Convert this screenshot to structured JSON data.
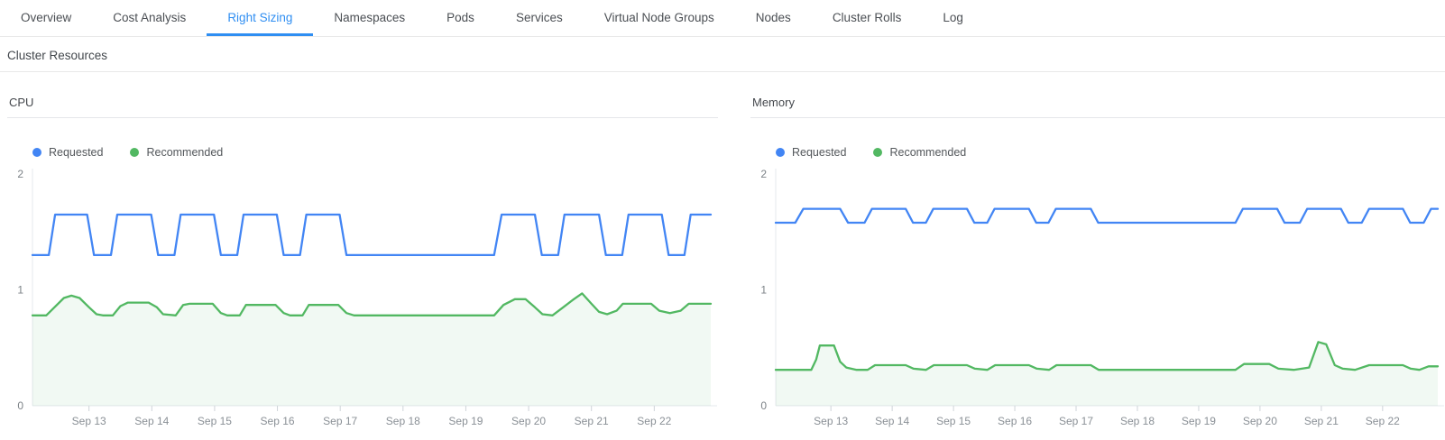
{
  "tab_bar": {
    "tabs": [
      {
        "label": "Overview",
        "active": false
      },
      {
        "label": "Cost Analysis",
        "active": false
      },
      {
        "label": "Right Sizing",
        "active": true
      },
      {
        "label": "Namespaces",
        "active": false
      },
      {
        "label": "Pods",
        "active": false
      },
      {
        "label": "Services",
        "active": false
      },
      {
        "label": "Virtual Node Groups",
        "active": false
      },
      {
        "label": "Nodes",
        "active": false
      },
      {
        "label": "Cluster Rolls",
        "active": false
      },
      {
        "label": "Log",
        "active": false
      }
    ]
  },
  "section": {
    "title": "Cluster Resources"
  },
  "colors": {
    "requested": "#4285f4",
    "recommended": "#52b862",
    "recommended_fill": "rgba(82,184,98,0.08)",
    "active_tab": "#2f8ef2",
    "axis_line": "#e5e9ed",
    "tick_mark": "#cfd4d9",
    "tick_label": "#8a9096",
    "y_label": "#7c8287"
  },
  "chart_data": [
    {
      "id": "cpu",
      "type": "line",
      "title": "CPU",
      "legend": [
        "Requested",
        "Recommended"
      ],
      "legend_position": "top-left",
      "grid": false,
      "x_axis": {
        "range": [
          12.1,
          22.9
        ],
        "ticks": [
          13,
          14,
          15,
          16,
          17,
          18,
          19,
          20,
          21,
          22
        ],
        "tick_labels": [
          "Sep 13",
          "Sep 14",
          "Sep 15",
          "Sep 16",
          "Sep 17",
          "Sep 18",
          "Sep 19",
          "Sep 20",
          "Sep 21",
          "Sep 22"
        ]
      },
      "y_axis": {
        "range": [
          0,
          2
        ],
        "ticks": [
          0,
          1,
          2
        ]
      },
      "series": [
        {
          "name": "Requested",
          "color_key": "requested",
          "points": [
            [
              12.1,
              1.3
            ],
            [
              12.36,
              1.3
            ],
            [
              12.46,
              1.65
            ],
            [
              12.97,
              1.65
            ],
            [
              13.08,
              1.3
            ],
            [
              13.35,
              1.3
            ],
            [
              13.45,
              1.65
            ],
            [
              13.99,
              1.65
            ],
            [
              14.1,
              1.3
            ],
            [
              14.36,
              1.3
            ],
            [
              14.46,
              1.65
            ],
            [
              14.99,
              1.65
            ],
            [
              15.1,
              1.3
            ],
            [
              15.36,
              1.3
            ],
            [
              15.46,
              1.65
            ],
            [
              15.99,
              1.65
            ],
            [
              16.1,
              1.3
            ],
            [
              16.36,
              1.3
            ],
            [
              16.46,
              1.65
            ],
            [
              16.99,
              1.65
            ],
            [
              17.1,
              1.3
            ],
            [
              19.45,
              1.3
            ],
            [
              19.57,
              1.65
            ],
            [
              20.1,
              1.65
            ],
            [
              20.21,
              1.3
            ],
            [
              20.47,
              1.3
            ],
            [
              20.57,
              1.65
            ],
            [
              21.12,
              1.65
            ],
            [
              21.23,
              1.3
            ],
            [
              21.49,
              1.3
            ],
            [
              21.59,
              1.65
            ],
            [
              22.12,
              1.65
            ],
            [
              22.23,
              1.3
            ],
            [
              22.48,
              1.3
            ],
            [
              22.58,
              1.65
            ],
            [
              22.9,
              1.65
            ]
          ]
        },
        {
          "name": "Recommended",
          "color_key": "recommended",
          "area": true,
          "points": [
            [
              12.1,
              0.78
            ],
            [
              12.32,
              0.78
            ],
            [
              12.45,
              0.85
            ],
            [
              12.6,
              0.93
            ],
            [
              12.72,
              0.95
            ],
            [
              12.85,
              0.93
            ],
            [
              13.0,
              0.85
            ],
            [
              13.12,
              0.79
            ],
            [
              13.22,
              0.78
            ],
            [
              13.38,
              0.78
            ],
            [
              13.5,
              0.86
            ],
            [
              13.62,
              0.89
            ],
            [
              13.95,
              0.89
            ],
            [
              14.08,
              0.85
            ],
            [
              14.18,
              0.79
            ],
            [
              14.38,
              0.78
            ],
            [
              14.5,
              0.87
            ],
            [
              14.6,
              0.88
            ],
            [
              14.97,
              0.88
            ],
            [
              15.1,
              0.8
            ],
            [
              15.2,
              0.78
            ],
            [
              15.4,
              0.78
            ],
            [
              15.5,
              0.87
            ],
            [
              15.97,
              0.87
            ],
            [
              16.1,
              0.8
            ],
            [
              16.2,
              0.78
            ],
            [
              16.4,
              0.78
            ],
            [
              16.5,
              0.87
            ],
            [
              16.97,
              0.87
            ],
            [
              17.1,
              0.8
            ],
            [
              17.22,
              0.78
            ],
            [
              19.45,
              0.78
            ],
            [
              19.6,
              0.87
            ],
            [
              19.78,
              0.92
            ],
            [
              19.95,
              0.92
            ],
            [
              20.1,
              0.85
            ],
            [
              20.22,
              0.79
            ],
            [
              20.38,
              0.78
            ],
            [
              20.55,
              0.85
            ],
            [
              20.72,
              0.92
            ],
            [
              20.85,
              0.97
            ],
            [
              21.0,
              0.88
            ],
            [
              21.12,
              0.81
            ],
            [
              21.25,
              0.79
            ],
            [
              21.4,
              0.82
            ],
            [
              21.5,
              0.88
            ],
            [
              21.95,
              0.88
            ],
            [
              22.08,
              0.82
            ],
            [
              22.25,
              0.8
            ],
            [
              22.42,
              0.82
            ],
            [
              22.55,
              0.88
            ],
            [
              22.9,
              0.88
            ]
          ]
        }
      ]
    },
    {
      "id": "memory",
      "type": "line",
      "title": "Memory",
      "legend": [
        "Requested",
        "Recommended"
      ],
      "legend_position": "top-left",
      "grid": false,
      "x_axis": {
        "range": [
          12.1,
          22.9
        ],
        "ticks": [
          13,
          14,
          15,
          16,
          17,
          18,
          19,
          20,
          21,
          22
        ],
        "tick_labels": [
          "Sep 13",
          "Sep 14",
          "Sep 15",
          "Sep 16",
          "Sep 17",
          "Sep 18",
          "Sep 19",
          "Sep 20",
          "Sep 21",
          "Sep 22"
        ]
      },
      "y_axis": {
        "range": [
          0,
          2
        ],
        "ticks": [
          0,
          1,
          2
        ]
      },
      "series": [
        {
          "name": "Requested",
          "color_key": "requested",
          "points": [
            [
              12.1,
              1.58
            ],
            [
              12.42,
              1.58
            ],
            [
              12.55,
              1.7
            ],
            [
              13.15,
              1.7
            ],
            [
              13.28,
              1.58
            ],
            [
              13.55,
              1.58
            ],
            [
              13.67,
              1.7
            ],
            [
              14.22,
              1.7
            ],
            [
              14.34,
              1.58
            ],
            [
              14.55,
              1.58
            ],
            [
              14.67,
              1.7
            ],
            [
              15.22,
              1.7
            ],
            [
              15.34,
              1.58
            ],
            [
              15.55,
              1.58
            ],
            [
              15.67,
              1.7
            ],
            [
              16.23,
              1.7
            ],
            [
              16.35,
              1.58
            ],
            [
              16.55,
              1.58
            ],
            [
              16.67,
              1.7
            ],
            [
              17.24,
              1.7
            ],
            [
              17.36,
              1.58
            ],
            [
              19.6,
              1.58
            ],
            [
              19.72,
              1.7
            ],
            [
              20.28,
              1.7
            ],
            [
              20.4,
              1.58
            ],
            [
              20.65,
              1.58
            ],
            [
              20.77,
              1.7
            ],
            [
              21.32,
              1.7
            ],
            [
              21.44,
              1.58
            ],
            [
              21.66,
              1.58
            ],
            [
              21.78,
              1.7
            ],
            [
              22.33,
              1.7
            ],
            [
              22.45,
              1.58
            ],
            [
              22.67,
              1.58
            ],
            [
              22.79,
              1.7
            ],
            [
              22.9,
              1.7
            ]
          ]
        },
        {
          "name": "Recommended",
          "color_key": "recommended",
          "area": true,
          "points": [
            [
              12.1,
              0.31
            ],
            [
              12.68,
              0.31
            ],
            [
              12.76,
              0.4
            ],
            [
              12.82,
              0.52
            ],
            [
              13.05,
              0.52
            ],
            [
              13.15,
              0.38
            ],
            [
              13.25,
              0.33
            ],
            [
              13.42,
              0.31
            ],
            [
              13.6,
              0.31
            ],
            [
              13.72,
              0.35
            ],
            [
              14.22,
              0.35
            ],
            [
              14.35,
              0.32
            ],
            [
              14.55,
              0.31
            ],
            [
              14.68,
              0.35
            ],
            [
              15.22,
              0.35
            ],
            [
              15.35,
              0.32
            ],
            [
              15.55,
              0.31
            ],
            [
              15.68,
              0.35
            ],
            [
              16.23,
              0.35
            ],
            [
              16.36,
              0.32
            ],
            [
              16.56,
              0.31
            ],
            [
              16.68,
              0.35
            ],
            [
              17.24,
              0.35
            ],
            [
              17.37,
              0.31
            ],
            [
              19.6,
              0.31
            ],
            [
              19.74,
              0.36
            ],
            [
              20.15,
              0.36
            ],
            [
              20.3,
              0.32
            ],
            [
              20.55,
              0.31
            ],
            [
              20.8,
              0.33
            ],
            [
              20.95,
              0.55
            ],
            [
              21.08,
              0.53
            ],
            [
              21.22,
              0.35
            ],
            [
              21.35,
              0.32
            ],
            [
              21.55,
              0.31
            ],
            [
              21.78,
              0.35
            ],
            [
              22.33,
              0.35
            ],
            [
              22.46,
              0.32
            ],
            [
              22.6,
              0.31
            ],
            [
              22.75,
              0.34
            ],
            [
              22.9,
              0.34
            ]
          ]
        }
      ]
    }
  ]
}
